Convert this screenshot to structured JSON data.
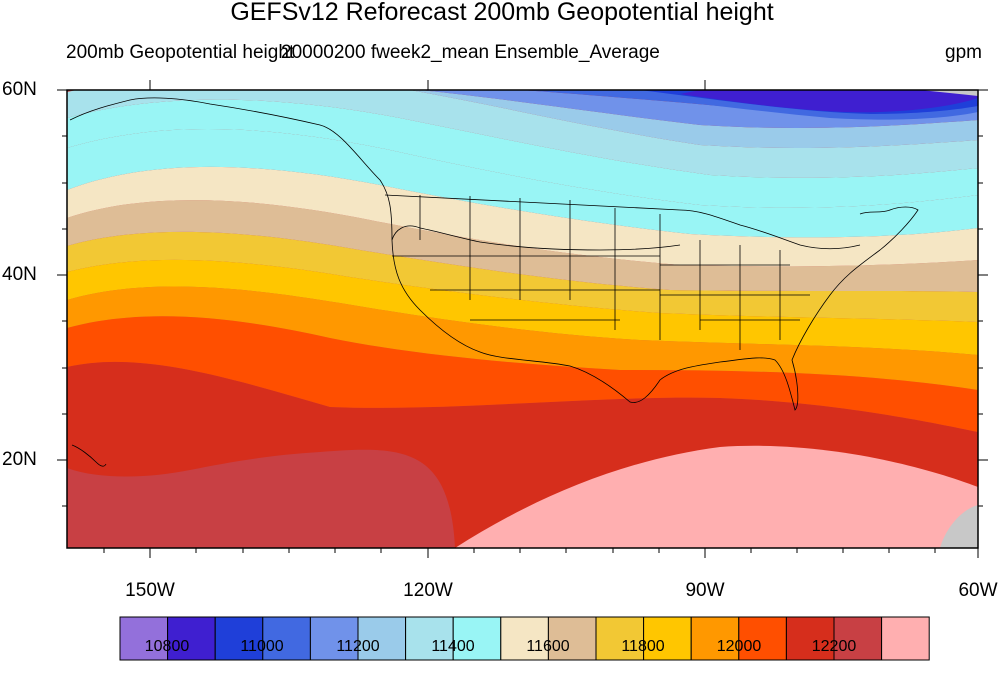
{
  "title": "GEFSv12 Reforecast 200mb Geopotential height",
  "subtitle_left": "200mb Geopotential height",
  "subtitle_center": "20000200 fweek2_mean Ensemble_Average",
  "units": "gpm",
  "lat_labels": [
    "60N",
    "40N",
    "20N"
  ],
  "lon_labels": [
    "150W",
    "120W",
    "90W",
    "60W"
  ],
  "colorbar": {
    "colors": [
      "#9370DB",
      "#3F1FD0",
      "#1F3FD9",
      "#4169E1",
      "#7092EA",
      "#9ACBEA",
      "#A8E2EC",
      "#99F5F5",
      "#F5E6C4",
      "#DEBD96",
      "#F2C834",
      "#FFC600",
      "#FF9800",
      "#FF4F00",
      "#D62E1C",
      "#C84044",
      "#FFAFB0"
    ],
    "tick_labels": [
      "10800",
      "11000",
      "11200",
      "11400",
      "11600",
      "11800",
      "12000",
      "12200"
    ]
  },
  "chart_data": {
    "type": "contour-map",
    "variable": "200mb Geopotential height",
    "units": "gpm",
    "lon_range": [
      -160,
      -60
    ],
    "lat_range": [
      10,
      60
    ],
    "levels": [
      10800,
      10900,
      11000,
      11100,
      11200,
      11300,
      11400,
      11500,
      11600,
      11700,
      11800,
      11900,
      12000,
      12100,
      12200,
      12300
    ]
  }
}
